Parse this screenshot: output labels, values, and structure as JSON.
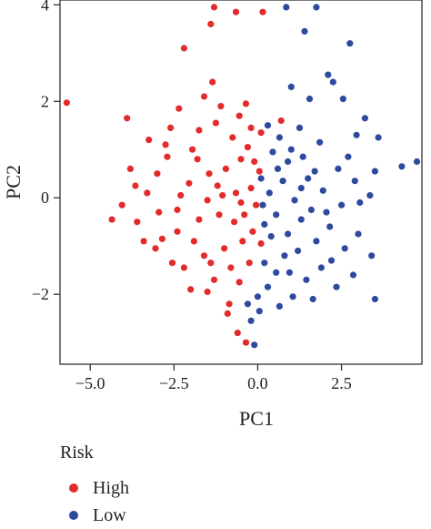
{
  "chart_data": {
    "type": "scatter",
    "xlabel": "PC1",
    "ylabel": "PC2",
    "xlim": [
      -5.9,
      4.9
    ],
    "ylim": [
      -3.45,
      4.1
    ],
    "xticks": [
      -5.0,
      -2.5,
      0.0,
      2.5
    ],
    "xtick_labels": [
      "−5.0",
      "−2.5",
      "0.0",
      "2.5"
    ],
    "yticks": [
      4,
      2,
      0,
      -2
    ],
    "ytick_labels": [
      "4",
      "2",
      "0",
      "−2"
    ],
    "grid": false,
    "legend": {
      "title": "Risk",
      "placement": "bottom-left"
    },
    "series": [
      {
        "name": "High",
        "color": "#e32b2b",
        "points": [
          [
            -5.7,
            1.97
          ],
          [
            -3.9,
            1.65
          ],
          [
            -2.2,
            3.1
          ],
          [
            -1.3,
            3.95
          ],
          [
            -0.65,
            3.85
          ],
          [
            0.15,
            3.85
          ],
          [
            -1.4,
            3.6
          ],
          [
            -1.35,
            2.4
          ],
          [
            -2.35,
            1.85
          ],
          [
            -1.75,
            1.4
          ],
          [
            -1.1,
            1.9
          ],
          [
            -0.55,
            1.7
          ],
          [
            0.7,
            1.6
          ],
          [
            -4.35,
            -0.45
          ],
          [
            -4.05,
            -0.15
          ],
          [
            -3.6,
            -0.5
          ],
          [
            -3.3,
            0.1
          ],
          [
            -3.0,
            0.5
          ],
          [
            -2.7,
            0.85
          ],
          [
            -2.4,
            -0.25
          ],
          [
            -2.05,
            0.3
          ],
          [
            -1.8,
            0.8
          ],
          [
            -1.5,
            -0.05
          ],
          [
            -1.2,
            0.25
          ],
          [
            -0.95,
            0.6
          ],
          [
            -0.65,
            0.1
          ],
          [
            -0.4,
            -0.35
          ],
          [
            -0.2,
            0.2
          ],
          [
            -3.8,
            0.6
          ],
          [
            -3.4,
            -0.9
          ],
          [
            -2.85,
            -0.85
          ],
          [
            -2.55,
            -1.35
          ],
          [
            -2.2,
            -1.45
          ],
          [
            -1.9,
            -0.9
          ],
          [
            -1.6,
            -1.2
          ],
          [
            -1.3,
            -1.7
          ],
          [
            -1.0,
            -1.05
          ],
          [
            -0.7,
            -0.5
          ],
          [
            -0.45,
            -0.9
          ],
          [
            -0.15,
            -0.7
          ],
          [
            -2.0,
            -1.9
          ],
          [
            -1.5,
            -1.95
          ],
          [
            -0.85,
            -2.2
          ],
          [
            -0.55,
            -1.75
          ],
          [
            -0.25,
            -1.35
          ],
          [
            -0.6,
            -2.8
          ],
          [
            -0.9,
            -2.4
          ],
          [
            -0.35,
            -3.0
          ],
          [
            -3.25,
            1.2
          ],
          [
            -2.6,
            1.45
          ],
          [
            -1.95,
            1.0
          ],
          [
            -1.25,
            1.55
          ],
          [
            -0.75,
            1.25
          ],
          [
            -0.3,
            1.05
          ],
          [
            0.05,
            0.55
          ],
          [
            -0.05,
            -0.15
          ],
          [
            0.1,
            -0.95
          ],
          [
            -1.05,
            0.05
          ],
          [
            -1.75,
            -0.45
          ],
          [
            -2.3,
            0.05
          ],
          [
            -2.95,
            -0.3
          ],
          [
            -3.65,
            0.25
          ],
          [
            -0.5,
            0.8
          ],
          [
            -1.45,
            0.5
          ],
          [
            0.1,
            1.35
          ],
          [
            -0.2,
            1.45
          ],
          [
            -0.35,
            1.95
          ],
          [
            -1.6,
            2.1
          ],
          [
            -2.75,
            1.1
          ],
          [
            -3.05,
            -1.05
          ],
          [
            -2.4,
            -0.7
          ],
          [
            -1.15,
            -0.35
          ],
          [
            -0.8,
            -1.45
          ],
          [
            -1.4,
            -1.35
          ],
          [
            -0.5,
            -0.1
          ],
          [
            -0.1,
            0.75
          ]
        ]
      },
      {
        "name": "Low",
        "color": "#2d4a9e",
        "points": [
          [
            0.85,
            3.95
          ],
          [
            1.75,
            3.95
          ],
          [
            1.4,
            3.45
          ],
          [
            2.75,
            3.2
          ],
          [
            2.1,
            2.55
          ],
          [
            2.25,
            2.4
          ],
          [
            1.0,
            2.3
          ],
          [
            1.55,
            2.05
          ],
          [
            2.55,
            2.05
          ],
          [
            3.2,
            1.65
          ],
          [
            0.3,
            1.5
          ],
          [
            0.65,
            1.25
          ],
          [
            1.25,
            1.45
          ],
          [
            1.85,
            1.15
          ],
          [
            3.6,
            1.25
          ],
          [
            4.3,
            0.65
          ],
          [
            4.75,
            0.75
          ],
          [
            3.5,
            0.55
          ],
          [
            2.9,
            0.35
          ],
          [
            2.4,
            0.6
          ],
          [
            1.95,
            0.15
          ],
          [
            1.5,
            0.4
          ],
          [
            1.1,
            -0.05
          ],
          [
            0.75,
            0.35
          ],
          [
            0.35,
            0.1
          ],
          [
            0.2,
            -0.55
          ],
          [
            0.55,
            -0.35
          ],
          [
            0.9,
            -0.75
          ],
          [
            1.3,
            -0.45
          ],
          [
            1.75,
            -0.9
          ],
          [
            2.15,
            -0.6
          ],
          [
            2.6,
            -1.05
          ],
          [
            3.0,
            -0.75
          ],
          [
            3.4,
            -1.2
          ],
          [
            2.85,
            -1.6
          ],
          [
            2.35,
            -1.85
          ],
          [
            1.9,
            -1.45
          ],
          [
            1.45,
            -1.7
          ],
          [
            1.05,
            -2.05
          ],
          [
            0.55,
            -1.55
          ],
          [
            0.2,
            -1.35
          ],
          [
            0.65,
            -2.25
          ],
          [
            0.0,
            -2.05
          ],
          [
            -0.2,
            -2.55
          ],
          [
            -0.1,
            -3.05
          ],
          [
            3.5,
            -2.1
          ],
          [
            3.05,
            -0.1
          ],
          [
            2.7,
            0.85
          ],
          [
            0.45,
            0.95
          ],
          [
            0.9,
            0.75
          ],
          [
            1.35,
            0.85
          ],
          [
            1.7,
            0.55
          ],
          [
            0.1,
            0.4
          ],
          [
            0.4,
            -0.8
          ],
          [
            0.8,
            -1.2
          ],
          [
            1.2,
            -1.1
          ],
          [
            1.6,
            -0.25
          ],
          [
            2.05,
            -0.3
          ],
          [
            2.5,
            -0.15
          ],
          [
            0.3,
            -1.85
          ],
          [
            0.95,
            -1.55
          ],
          [
            1.65,
            -2.1
          ],
          [
            2.2,
            -1.3
          ],
          [
            0.15,
            -0.15
          ],
          [
            0.6,
            0.6
          ],
          [
            1.0,
            1.0
          ],
          [
            1.3,
            0.2
          ],
          [
            0.05,
            -2.35
          ],
          [
            -0.3,
            -2.2
          ],
          [
            2.95,
            1.3
          ],
          [
            3.35,
            0.05
          ]
        ]
      }
    ]
  }
}
